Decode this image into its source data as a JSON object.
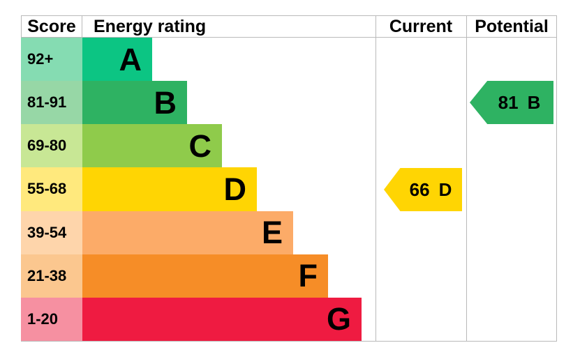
{
  "header": {
    "score": "Score",
    "energy_rating": "Energy rating",
    "current": "Current",
    "potential": "Potential"
  },
  "bands": [
    {
      "letter": "A",
      "score_range": "92+",
      "color": "#0cc583",
      "score_bg": "#85dcb2"
    },
    {
      "letter": "B",
      "score_range": "81-91",
      "color": "#2eb262",
      "score_bg": "#97d7a6"
    },
    {
      "letter": "C",
      "score_range": "69-80",
      "color": "#8fcb4b",
      "score_bg": "#c8e795"
    },
    {
      "letter": "D",
      "score_range": "55-68",
      "color": "#ffd503",
      "score_bg": "#ffe97d"
    },
    {
      "letter": "E",
      "score_range": "39-54",
      "color": "#fcab68",
      "score_bg": "#fed5ab"
    },
    {
      "letter": "F",
      "score_range": "21-38",
      "color": "#f68d27",
      "score_bg": "#fbc78f"
    },
    {
      "letter": "G",
      "score_range": "1-20",
      "color": "#ef1b41",
      "score_bg": "#f690a1"
    }
  ],
  "current": {
    "value": "66",
    "rating": "D",
    "color": "#ffd503"
  },
  "potential": {
    "value": "81",
    "rating": "B",
    "color": "#2eb262"
  },
  "border_color": "#b9b9b9",
  "chart_data": {
    "type": "bar",
    "title": "Energy rating",
    "categories": [
      "A",
      "B",
      "C",
      "D",
      "E",
      "F",
      "G"
    ],
    "score_ranges": [
      "92+",
      "81-91",
      "69-80",
      "55-68",
      "39-54",
      "21-38",
      "1-20"
    ],
    "band_colors": [
      "#0cc583",
      "#2eb262",
      "#8fcb4b",
      "#ffd503",
      "#fcab68",
      "#f68d27",
      "#ef1b41"
    ],
    "columns": [
      "Score",
      "Energy rating",
      "Current",
      "Potential"
    ],
    "current_rating": {
      "score": 66,
      "band": "D"
    },
    "potential_rating": {
      "score": 81,
      "band": "B"
    },
    "legend_position": "none",
    "grid": false
  }
}
